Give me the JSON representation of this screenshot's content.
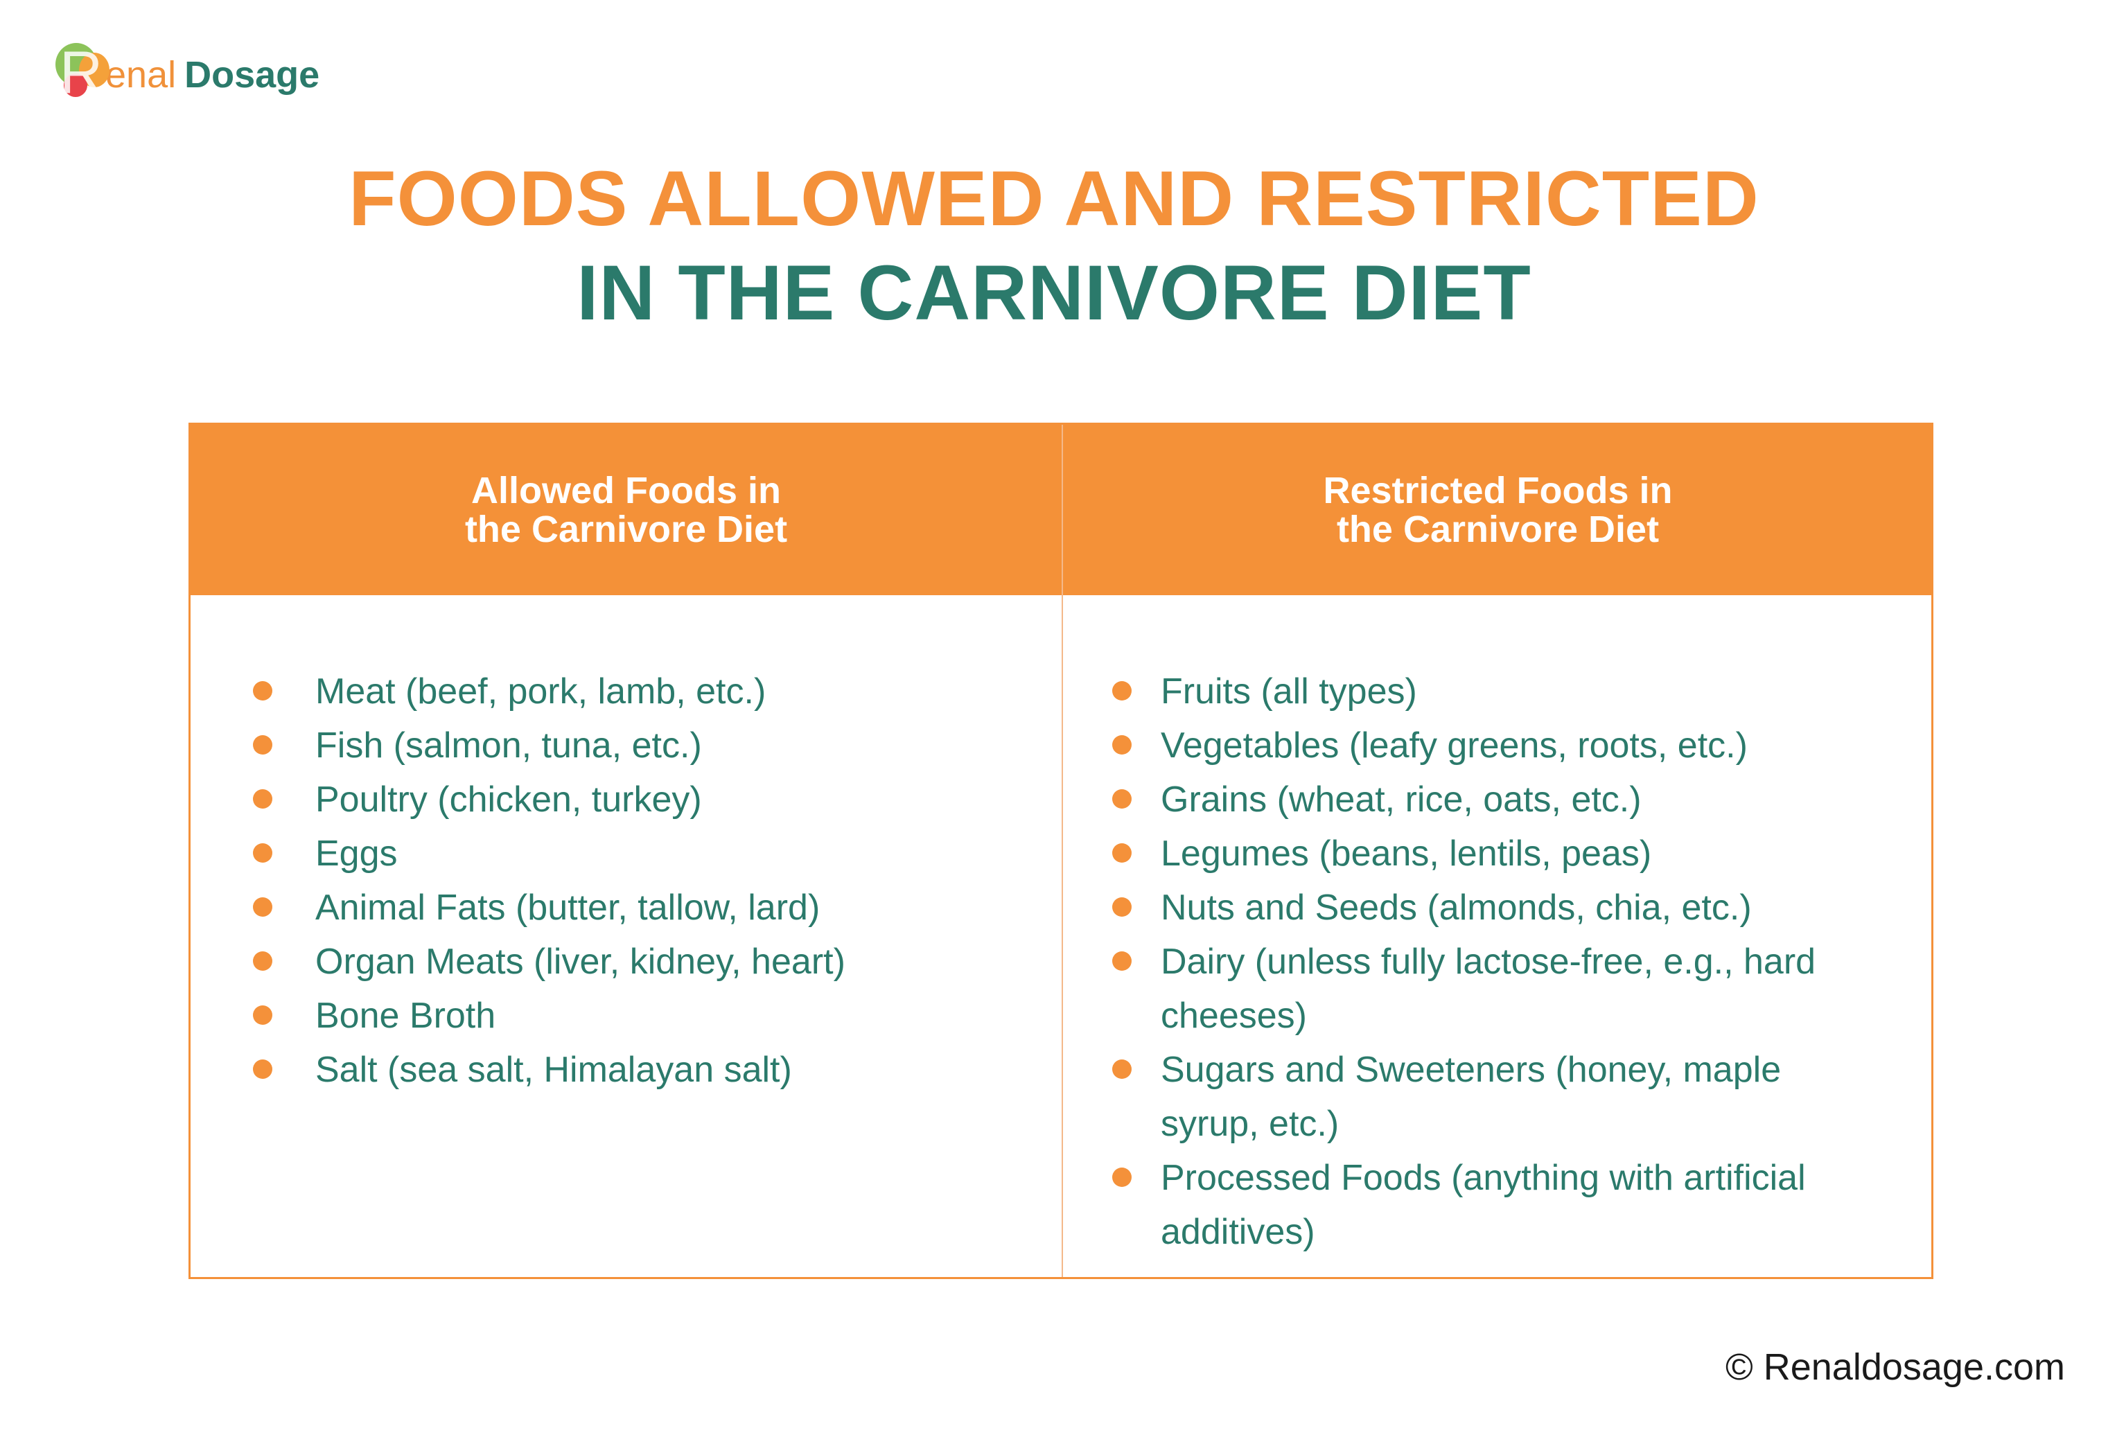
{
  "logo": {
    "letter": "R",
    "enal": "enal",
    "dosage": "Dosage"
  },
  "title": {
    "line1": "FOODS ALLOWED AND RESTRICTED",
    "line2": "IN THE CARNIVORE DIET"
  },
  "table": {
    "headers": [
      "Allowed Foods in\nthe Carnivore Diet",
      "Restricted Foods in\nthe Carnivore Diet"
    ],
    "allowed": [
      "Meat (beef, pork, lamb, etc.)",
      "Fish (salmon, tuna, etc.)",
      "Poultry (chicken, turkey)",
      "Eggs",
      "Animal Fats (butter, tallow, lard)",
      "Organ Meats (liver, kidney, heart)",
      "Bone Broth",
      "Salt (sea salt, Himalayan salt)"
    ],
    "restricted": [
      "Fruits (all types)",
      "Vegetables (leafy greens, roots, etc.)",
      "Grains (wheat, rice, oats, etc.)",
      "Legumes (beans, lentils, peas)",
      "Nuts and Seeds (almonds, chia, etc.)",
      "Dairy (unless fully lactose-free, e.g., hard cheeses)",
      "Sugars and Sweeteners (honey, maple syrup, etc.)",
      "Processed Foods (anything with artificial additives)"
    ]
  },
  "footer": {
    "copyright": "© Renaldosage.com"
  },
  "colors": {
    "orange": "#f4913a",
    "teal": "#2b7a6b"
  }
}
